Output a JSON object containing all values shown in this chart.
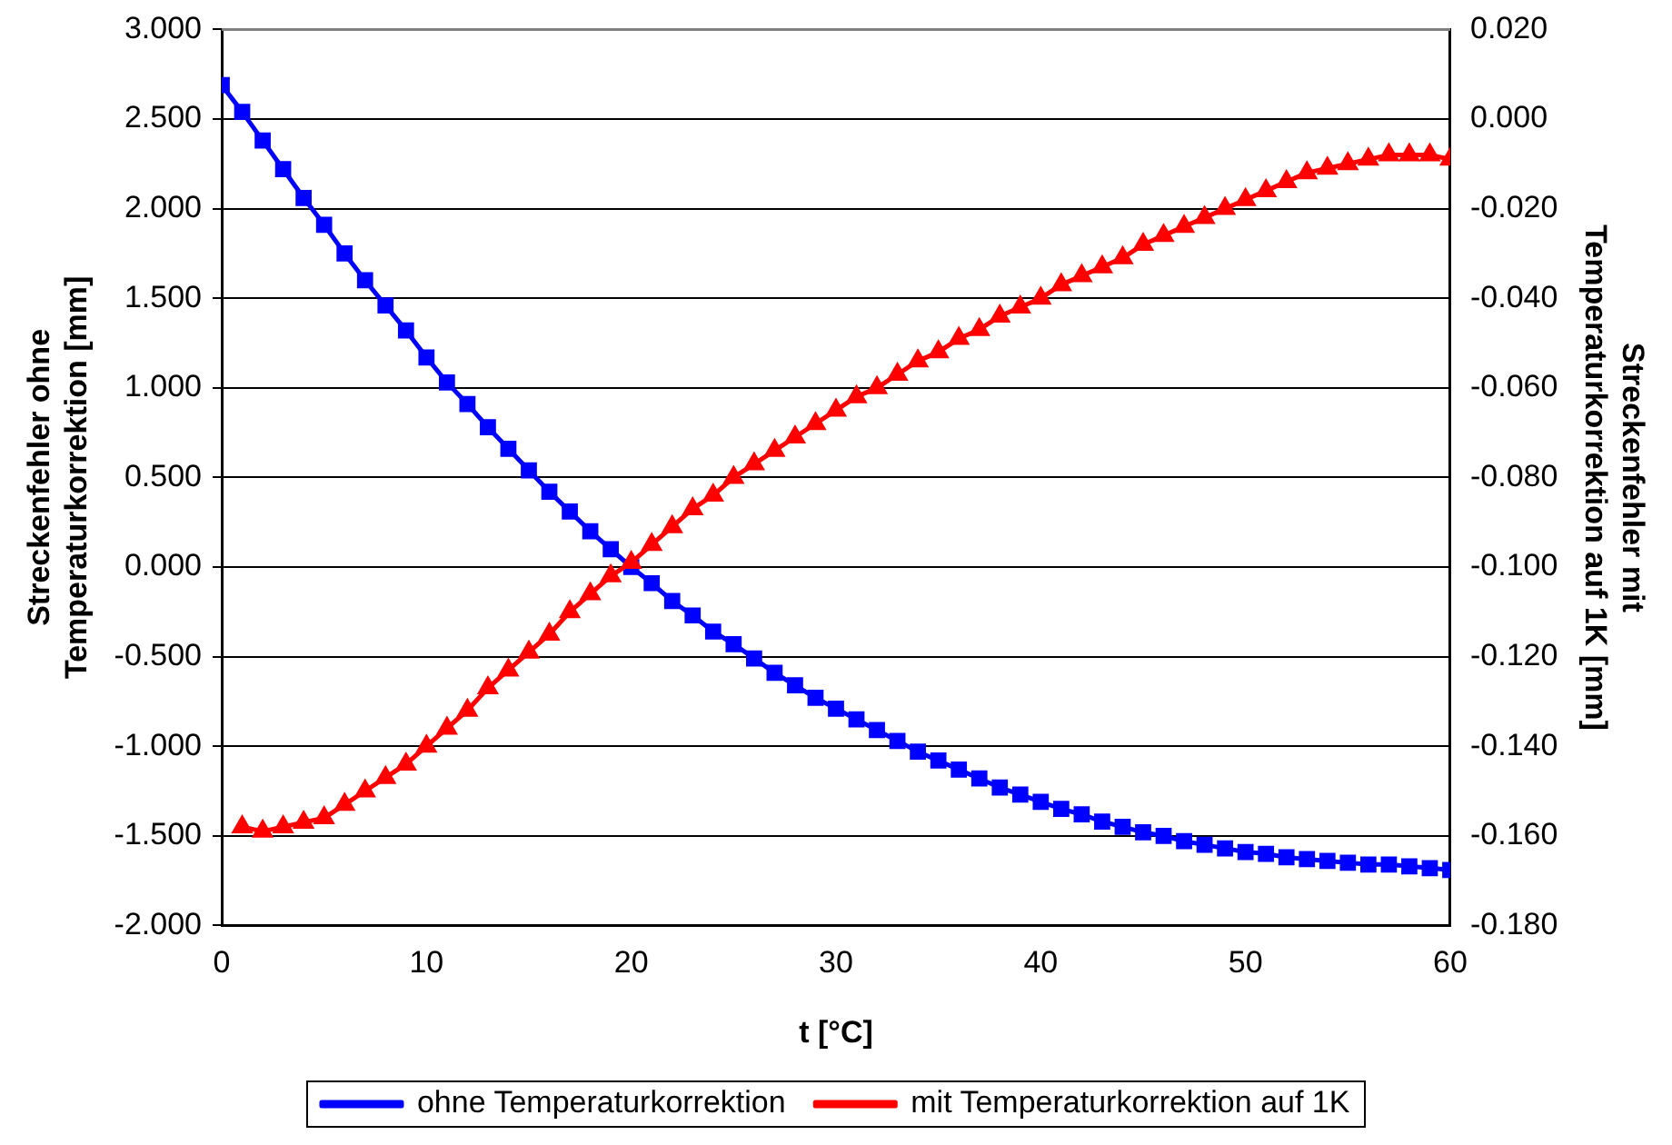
{
  "chart_data": {
    "type": "line",
    "xlabel": "t [°C]",
    "ylabel": "Streckenfehler ohne Temperaturkorrektion [mm]",
    "y2label": "Streckenfehler mit Temperaturkorrektion auf 1K [mm]",
    "xlim": [
      0,
      60
    ],
    "xticks": [
      0,
      10,
      20,
      30,
      40,
      50,
      60
    ],
    "ylim": [
      -2,
      3
    ],
    "yticks": [
      {
        "value": -2,
        "label": "-2.000"
      },
      {
        "value": -1.5,
        "label": "-1.500"
      },
      {
        "value": -1,
        "label": "-1.000"
      },
      {
        "value": -0.5,
        "label": "-0.500"
      },
      {
        "value": 0,
        "label": "0.000"
      },
      {
        "value": 0.5,
        "label": "0.500"
      },
      {
        "value": 1,
        "label": "1.000"
      },
      {
        "value": 1.5,
        "label": "1.500"
      },
      {
        "value": 2,
        "label": "2.000"
      },
      {
        "value": 2.5,
        "label": "2.500"
      },
      {
        "value": 3,
        "label": "3.000"
      }
    ],
    "y2lim": [
      -0.18,
      0.02
    ],
    "y2ticks": [
      {
        "value": -0.18,
        "label": "-0.180"
      },
      {
        "value": -0.16,
        "label": "-0.160"
      },
      {
        "value": -0.14,
        "label": "-0.140"
      },
      {
        "value": -0.12,
        "label": "-0.120"
      },
      {
        "value": -0.1,
        "label": "-0.100"
      },
      {
        "value": -0.08,
        "label": "-0.080"
      },
      {
        "value": -0.06,
        "label": "-0.060"
      },
      {
        "value": -0.04,
        "label": "-0.040"
      },
      {
        "value": -0.02,
        "label": "-0.020"
      },
      {
        "value": 0,
        "label": "0.000"
      },
      {
        "value": 0.02,
        "label": "0.020"
      }
    ],
    "grid": "y",
    "legend": "bottom",
    "line_style": "solid",
    "series": [
      {
        "name": "ohne Temperaturkorrektion",
        "color": "#0000ff",
        "marker": "square",
        "x": [
          0,
          1,
          2,
          3,
          4,
          5,
          6,
          7,
          8,
          9,
          10,
          11,
          12,
          13,
          14,
          15,
          16,
          17,
          18,
          19,
          20,
          21,
          22,
          23,
          24,
          25,
          26,
          27,
          28,
          29,
          30,
          31,
          32,
          33,
          34,
          35,
          36,
          37,
          38,
          39,
          40,
          41,
          42,
          43,
          44,
          45,
          46,
          47,
          48,
          49,
          50,
          51,
          52,
          53,
          54,
          55,
          56,
          57,
          58,
          59,
          60
        ],
        "values": [
          2.69,
          2.54,
          2.38,
          2.22,
          2.06,
          1.91,
          1.75,
          1.6,
          1.46,
          1.32,
          1.17,
          1.03,
          0.91,
          0.78,
          0.66,
          0.54,
          0.42,
          0.31,
          0.2,
          0.1,
          0.0,
          -0.09,
          -0.19,
          -0.27,
          -0.36,
          -0.43,
          -0.51,
          -0.59,
          -0.66,
          -0.73,
          -0.79,
          -0.85,
          -0.91,
          -0.97,
          -1.03,
          -1.08,
          -1.13,
          -1.18,
          -1.23,
          -1.27,
          -1.31,
          -1.35,
          -1.38,
          -1.42,
          -1.45,
          -1.48,
          -1.5,
          -1.53,
          -1.55,
          -1.57,
          -1.59,
          -1.6,
          -1.62,
          -1.63,
          -1.64,
          -1.65,
          -1.66,
          -1.66,
          -1.67,
          -1.68,
          -1.69
        ]
      },
      {
        "name": "mit Temperaturkorrektion auf 1K",
        "color": "#ff0000",
        "marker": "triangle",
        "axis": "y2",
        "x": [
          1,
          2,
          3,
          4,
          5,
          6,
          7,
          8,
          9,
          10,
          11,
          12,
          13,
          14,
          15,
          16,
          17,
          18,
          19,
          20,
          21,
          22,
          23,
          24,
          25,
          26,
          27,
          28,
          29,
          30,
          31,
          32,
          33,
          34,
          35,
          36,
          37,
          38,
          39,
          40,
          41,
          42,
          43,
          44,
          45,
          46,
          47,
          48,
          49,
          50,
          51,
          52,
          53,
          54,
          55,
          56,
          57,
          58,
          59,
          60
        ],
        "values": [
          -0.158,
          -0.159,
          -0.158,
          -0.157,
          -0.156,
          -0.153,
          -0.15,
          -0.147,
          -0.144,
          -0.14,
          -0.136,
          -0.132,
          -0.127,
          -0.123,
          -0.119,
          -0.115,
          -0.11,
          -0.106,
          -0.102,
          -0.099,
          -0.095,
          -0.091,
          -0.087,
          -0.084,
          -0.08,
          -0.077,
          -0.074,
          -0.071,
          -0.068,
          -0.065,
          -0.062,
          -0.06,
          -0.057,
          -0.054,
          -0.052,
          -0.049,
          -0.047,
          -0.044,
          -0.042,
          -0.04,
          -0.037,
          -0.035,
          -0.033,
          -0.031,
          -0.028,
          -0.026,
          -0.024,
          -0.022,
          -0.02,
          -0.018,
          -0.016,
          -0.014,
          -0.012,
          -0.011,
          -0.01,
          -0.009,
          -0.008,
          -0.008,
          -0.008,
          -0.009
        ]
      }
    ]
  }
}
